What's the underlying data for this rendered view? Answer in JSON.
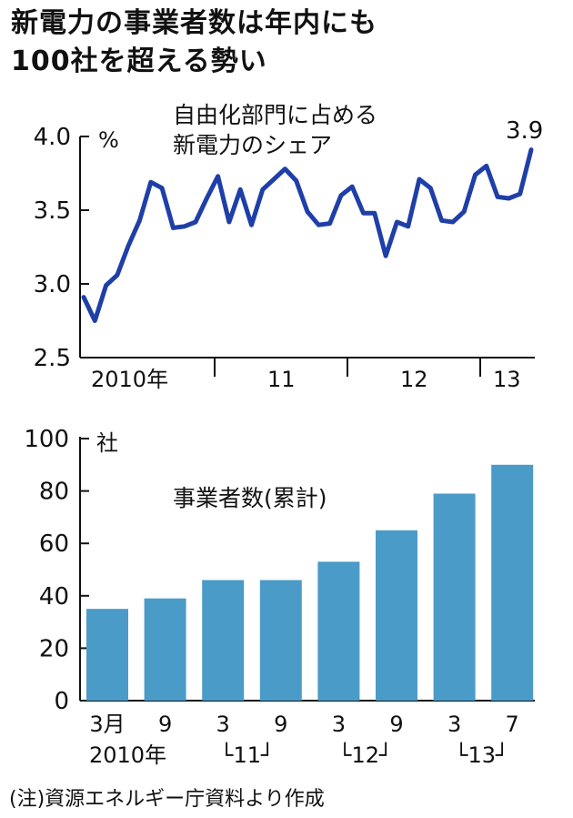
{
  "headline": {
    "line1": "新電力の事業者数は年内にも",
    "line2": "100社を超える勢い"
  },
  "note": "(注)資源エネルギー庁資料より作成",
  "colors": {
    "line": "#1f3fa8",
    "bar": "#4a9bc7",
    "axis": "#111111"
  },
  "chart_data": [
    {
      "type": "line",
      "title": "自由化部門に占める\n新電力のシェア",
      "title_lines": [
        "自由化部門に占める",
        "新電力のシェア"
      ],
      "ylabel": "%",
      "ylim": [
        2.5,
        4.0
      ],
      "yticks": [
        2.5,
        3.0,
        3.5,
        4.0
      ],
      "ytick_labels": [
        "2.5",
        "3.0",
        "3.5",
        "4.0"
      ],
      "year_labels": [
        "2010年",
        "11",
        "12",
        "13"
      ],
      "end_label": "3.9",
      "series": [
        {
          "name": "新電力のシェア",
          "values": [
            2.91,
            2.75,
            2.99,
            3.06,
            3.26,
            3.43,
            3.69,
            3.65,
            3.38,
            3.39,
            3.42,
            3.58,
            3.73,
            3.42,
            3.64,
            3.4,
            3.64,
            3.71,
            3.78,
            3.7,
            3.49,
            3.4,
            3.41,
            3.6,
            3.66,
            3.48,
            3.48,
            3.19,
            3.42,
            3.39,
            3.71,
            3.65,
            3.43,
            3.42,
            3.49,
            3.74,
            3.8,
            3.59,
            3.58,
            3.61,
            3.91
          ]
        }
      ]
    },
    {
      "type": "bar",
      "title": "事業者数(累計)",
      "ylabel": "社",
      "ylim": [
        0,
        100
      ],
      "yticks": [
        0,
        20,
        40,
        60,
        80,
        100
      ],
      "ytick_labels": [
        "0",
        "20",
        "40",
        "60",
        "80",
        "100"
      ],
      "categories": [
        "3月",
        "9",
        "3",
        "9",
        "3",
        "9",
        "3",
        "7"
      ],
      "year_labels": [
        "2010年",
        "└11┘",
        "└12┘",
        "└13┘"
      ],
      "values": [
        35,
        39,
        46,
        46,
        53,
        65,
        79,
        90
      ]
    }
  ]
}
